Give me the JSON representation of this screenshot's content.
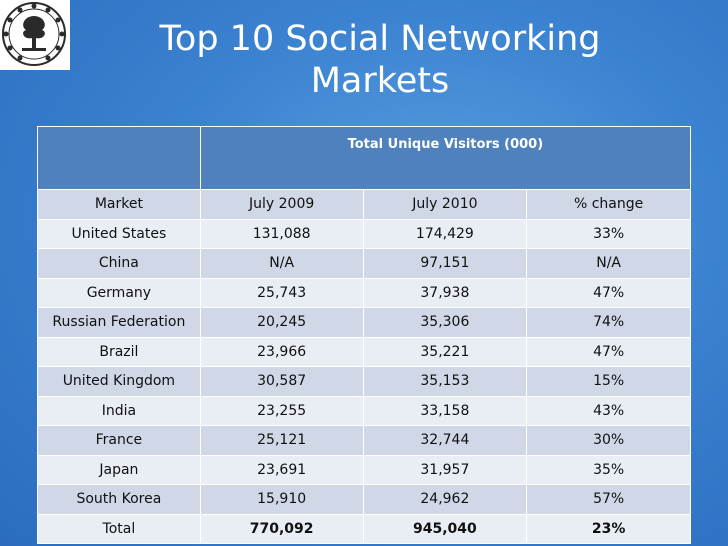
{
  "title": {
    "line1": "Top 10 Social Networking",
    "line2": "Markets"
  },
  "logo": {
    "icon": "institute-seal-logo"
  },
  "table": {
    "group_header": "Total Unique Visitors (000)",
    "columns": [
      "Market",
      "July 2009",
      "July 2010",
      "% change"
    ],
    "rows": [
      [
        "United States",
        "131,088",
        "174,429",
        "33%"
      ],
      [
        "China",
        "N/A",
        "97,151",
        "N/A"
      ],
      [
        "Germany",
        "25,743",
        "37,938",
        "47%"
      ],
      [
        "Russian Federation",
        "20,245",
        "35,306",
        "74%"
      ],
      [
        "Brazil",
        "23,966",
        "35,221",
        "47%"
      ],
      [
        "United Kingdom",
        "30,587",
        "35,153",
        "15%"
      ],
      [
        "India",
        "23,255",
        "33,158",
        "43%"
      ],
      [
        "France",
        "25,121",
        "32,744",
        "30%"
      ],
      [
        "Japan",
        "23,691",
        "31,957",
        "35%"
      ],
      [
        "South Korea",
        "15,910",
        "24,962",
        "57%"
      ]
    ],
    "total": [
      "Total",
      "770,092",
      "945,040",
      "23%"
    ]
  }
}
